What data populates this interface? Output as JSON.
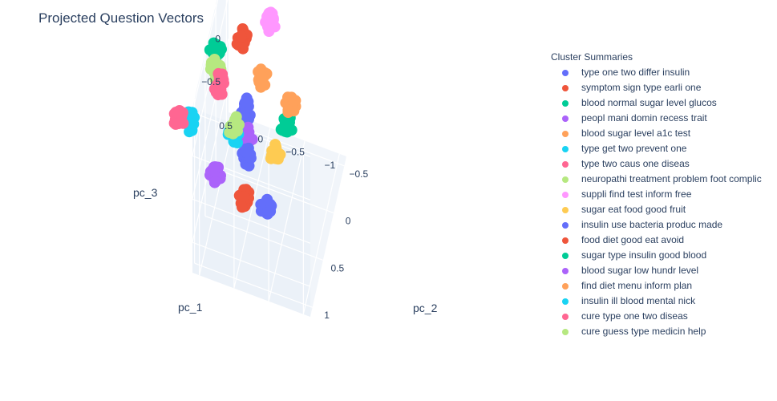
{
  "chart_data": {
    "type": "scatter",
    "title": "Projected Question Vectors",
    "xlabel": "pc_1",
    "ylabel": "pc_2",
    "zlabel": "pc_3",
    "xticks": [
      "0.5",
      "0",
      "−0.5",
      "−1"
    ],
    "yticks": [
      "−0.5",
      "0",
      "0.5",
      "1"
    ],
    "zticks": [
      "1",
      "0.5",
      "0",
      "−0.5"
    ],
    "xlim": [
      -1.1,
      0.6
    ],
    "ylim": [
      -0.6,
      1.1
    ],
    "zlim": [
      -0.85,
      1.05
    ],
    "legend_title": "Cluster Summaries",
    "legend_position": "right",
    "grid": true,
    "series": [
      {
        "name": "type one two differ insulin",
        "color": "#636efa",
        "centers": [
          [
            -0.3,
            0.55,
            -0.42
          ],
          [
            0.2,
            -0.1,
            -0.15
          ]
        ]
      },
      {
        "name": "symptom sign type earli one",
        "color": "#ef553b",
        "centers": [
          [
            0.2,
            0.1,
            0.88
          ]
        ]
      },
      {
        "name": "blood normal sugar level glucos",
        "color": "#00cc96",
        "centers": [
          [
            0.55,
            0.15,
            0.7
          ]
        ]
      },
      {
        "name": "peopl mani domin recess trait",
        "color": "#ab63fa",
        "centers": [
          [
            0.1,
            0.2,
            -0.12
          ]
        ]
      },
      {
        "name": "blood sugar level a1c test",
        "color": "#ffa15a",
        "centers": [
          [
            -0.1,
            0.1,
            0.5
          ]
        ]
      },
      {
        "name": "type get two prevent one",
        "color": "#19d3f3",
        "centers": [
          [
            0.85,
            0.45,
            0.1
          ]
        ]
      },
      {
        "name": "type two caus one diseas",
        "color": "#ff6692",
        "centers": [
          [
            0.9,
            0.8,
            0.5
          ]
        ]
      },
      {
        "name": "neuropathi treatment problem foot complic",
        "color": "#b6e880",
        "centers": [
          [
            0.55,
            0.2,
            0.55
          ]
        ]
      },
      {
        "name": "suppli find test inform free",
        "color": "#ff97ff",
        "centers": [
          [
            -0.1,
            -0.25,
            0.8
          ]
        ]
      },
      {
        "name": "sugar eat food good fruit",
        "color": "#fecb52",
        "centers": [
          [
            -0.35,
            0.3,
            -0.05
          ]
        ]
      },
      {
        "name": "insulin use bacteria produc made",
        "color": "#636efa",
        "centers": [
          [
            0.0,
            0.5,
            0.0
          ]
        ]
      },
      {
        "name": "food diet good eat avoid",
        "color": "#ef553b",
        "centers": [
          [
            0.1,
            0.3,
            -0.7
          ]
        ]
      },
      {
        "name": "sugar type insulin good blood",
        "color": "#00cc96",
        "centers": [
          [
            -0.5,
            0.25,
            0.25
          ]
        ]
      },
      {
        "name": "blood sugar low hundr level",
        "color": "#ab63fa",
        "centers": [
          [
            0.4,
            0.7,
            -0.1
          ]
        ]
      },
      {
        "name": "find diet menu inform plan",
        "color": "#ffa15a",
        "centers": [
          [
            -0.5,
            0.05,
            0.3
          ]
        ]
      },
      {
        "name": "insulin ill blood mental nick",
        "color": "#19d3f3",
        "centers": [
          [
            0.3,
            0.15,
            -0.2
          ]
        ]
      },
      {
        "name": "cure type one two diseas",
        "color": "#ff6692",
        "centers": [
          [
            0.45,
            0.3,
            0.5
          ]
        ]
      },
      {
        "name": "cure guess type medicin help",
        "color": "#b6e880",
        "centers": [
          [
            0.2,
            0.4,
            0.2
          ]
        ]
      }
    ]
  }
}
